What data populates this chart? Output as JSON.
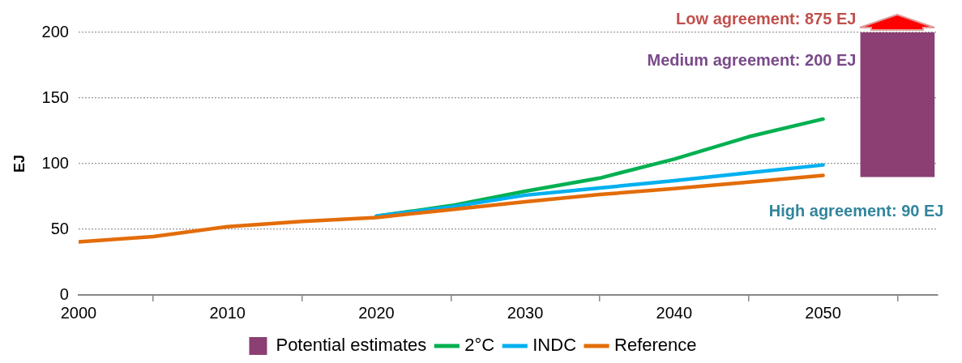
{
  "chart_data": {
    "type": "line",
    "ylabel": "EJ",
    "x": [
      2000,
      2005,
      2010,
      2015,
      2020,
      2025,
      2030,
      2035,
      2040,
      2045,
      2050
    ],
    "xlim": [
      2000,
      2057.7
    ],
    "xticks": [
      2000,
      2010,
      2020,
      2030,
      2040,
      2050
    ],
    "ylim": [
      0,
      200
    ],
    "yticks": [
      0,
      50,
      100,
      150,
      200
    ],
    "grid": "y",
    "legend": "bottom",
    "marker": "none",
    "line_style": "solid",
    "series": [
      {
        "name": "Potential estimates",
        "type": "bar",
        "color": "#8b3f73",
        "x": [
          2055
        ],
        "base": [
          90
        ],
        "values": [
          110
        ]
      },
      {
        "name": "2°C",
        "color": "#00b050",
        "values": [
          null,
          null,
          null,
          null,
          60,
          68,
          79,
          89,
          103.5,
          120.5,
          134
        ]
      },
      {
        "name": "INDC",
        "color": "#00b0f0",
        "values": [
          null,
          null,
          null,
          null,
          60,
          67,
          76,
          81.5,
          87,
          93,
          99
        ]
      },
      {
        "name": "Reference",
        "color": "#e36c09",
        "values": [
          40.5,
          44.5,
          52,
          56,
          59,
          65,
          71,
          76.5,
          81,
          86,
          91
        ]
      }
    ],
    "annotations": [
      "Low agreement: 875 EJ",
      "Medium agreement: 200 EJ",
      "High agreement: 90 EJ"
    ]
  }
}
